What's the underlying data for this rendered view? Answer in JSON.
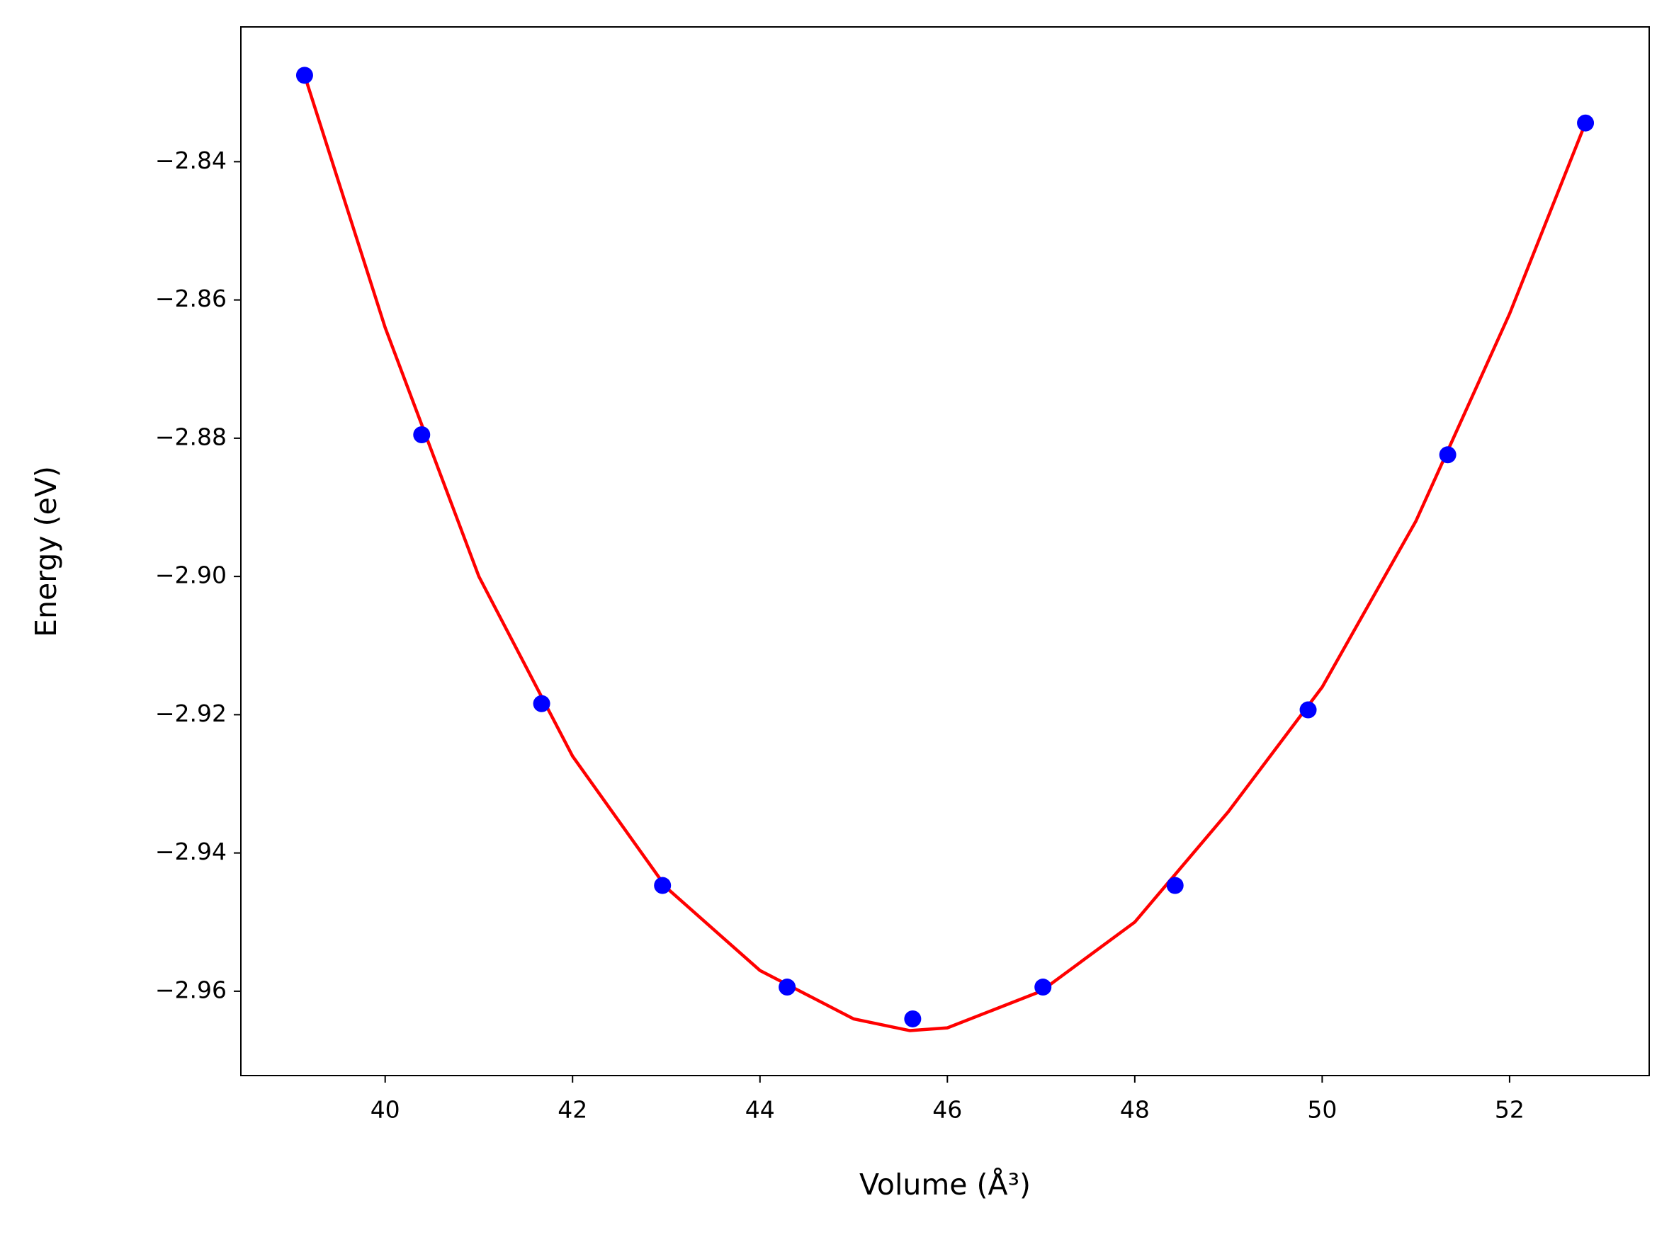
{
  "chart_data": {
    "type": "scatter",
    "x_label": "Volume (Å³)",
    "y_label": "Energy (eV)",
    "xlim": [
      38.46,
      53.49
    ],
    "ylim": [
      -2.9722,
      -2.8205
    ],
    "xticks": [
      40,
      42,
      44,
      46,
      48,
      50,
      52
    ],
    "yticks": [
      {
        "value": -2.84,
        "label": "−2.84"
      },
      {
        "value": -2.86,
        "label": "−2.86"
      },
      {
        "value": -2.88,
        "label": "−2.88"
      },
      {
        "value": -2.9,
        "label": "−2.90"
      },
      {
        "value": -2.92,
        "label": "−2.92"
      },
      {
        "value": -2.94,
        "label": "−2.94"
      },
      {
        "value": -2.96,
        "label": "−2.96"
      }
    ],
    "grid": false,
    "series": [
      {
        "type": "scatter",
        "color": "#0000ff",
        "x": [
          39.14,
          40.39,
          41.67,
          42.96,
          44.29,
          45.63,
          47.02,
          48.43,
          49.85,
          51.34,
          52.81
        ],
        "values": [
          -2.8275,
          -2.8795,
          -2.9184,
          -2.9447,
          -2.9594,
          -2.964,
          -2.9594,
          -2.9447,
          -2.9193,
          -2.8824,
          -2.8344
        ]
      },
      {
        "type": "line",
        "color": "#ff0000",
        "x": [
          39.14,
          40,
          41,
          42,
          43,
          44,
          45,
          45.6,
          46,
          47,
          48,
          49,
          50,
          51,
          52,
          52.81
        ],
        "values": [
          -2.8275,
          -2.864,
          -2.9,
          -2.926,
          -2.945,
          -2.957,
          -2.964,
          -2.9657,
          -2.9653,
          -2.96,
          -2.95,
          -2.934,
          -2.916,
          -2.892,
          -2.862,
          -2.8344
        ]
      }
    ]
  }
}
